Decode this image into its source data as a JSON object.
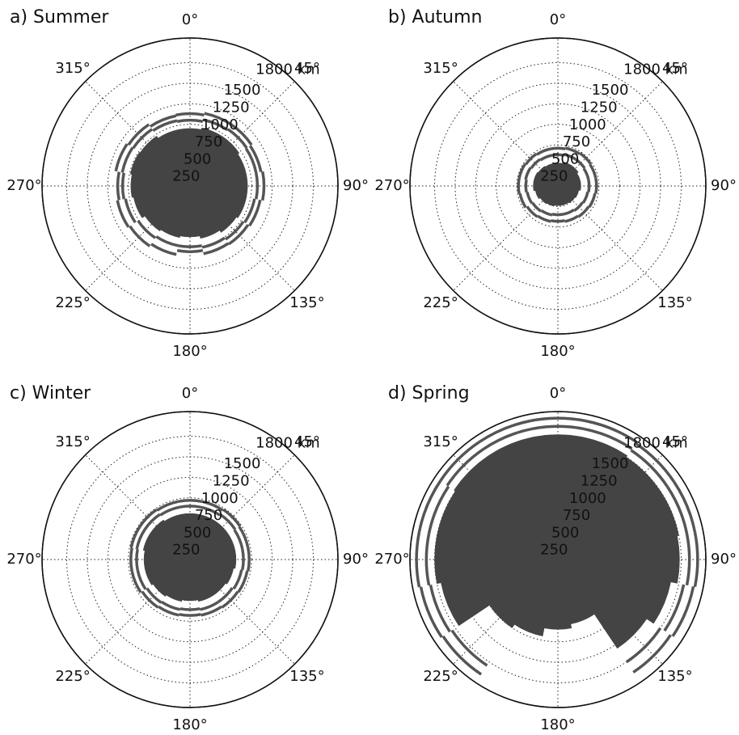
{
  "chart_data": [
    {
      "type": "polar_bar",
      "title": "a) Summer",
      "rlim": [
        0,
        1800
      ],
      "rticks": [
        250,
        500,
        750,
        1000,
        1250,
        1500,
        {
          "value": 1800,
          "label": "1800 km"
        }
      ],
      "thetaticks": [
        {
          "value": 0,
          "label": "0°"
        },
        {
          "value": 45,
          "label": "45°"
        },
        {
          "value": 90,
          "label": "90°"
        },
        {
          "value": 135,
          "label": "135°"
        },
        {
          "value": 180,
          "label": "180°"
        },
        {
          "value": 225,
          "label": "225°"
        },
        {
          "value": 270,
          "label": "270°"
        },
        {
          "value": 315,
          "label": "315°"
        }
      ],
      "theta": [
        0,
        22.5,
        45,
        67.5,
        90,
        112.5,
        135,
        157.5,
        180,
        202.5,
        225,
        247.5,
        270,
        292.5,
        315,
        337.5
      ],
      "grid": true,
      "series": [
        {
          "kind": "fill",
          "color": "#444444",
          "values": [
            700,
            720,
            720,
            700,
            700,
            700,
            680,
            650,
            620,
            640,
            660,
            700,
            720,
            740,
            730,
            700
          ]
        },
        {
          "kind": "outline",
          "color": "#555555",
          "values": [
            800,
            820,
            830,
            820,
            820,
            800,
            780,
            760,
            740,
            740,
            760,
            800,
            820,
            840,
            830,
            810
          ]
        },
        {
          "kind": "outline",
          "color": "#555555",
          "values": [
            880,
            900,
            900,
            880,
            900,
            870,
            850,
            840,
            800,
            850,
            880,
            900,
            880,
            920,
            900,
            870
          ]
        }
      ]
    },
    {
      "type": "polar_bar",
      "title": "b) Autumn",
      "rlim": [
        0,
        1800
      ],
      "rticks": [
        250,
        500,
        750,
        1000,
        1250,
        1500,
        {
          "value": 1800,
          "label": "1800 km"
        }
      ],
      "thetaticks": [
        {
          "value": 0,
          "label": "0°"
        },
        {
          "value": 45,
          "label": "45°"
        },
        {
          "value": 90,
          "label": "90°"
        },
        {
          "value": 135,
          "label": "135°"
        },
        {
          "value": 180,
          "label": "180°"
        },
        {
          "value": 225,
          "label": "225°"
        },
        {
          "value": 270,
          "label": "270°"
        },
        {
          "value": 315,
          "label": "315°"
        }
      ],
      "theta": [
        0,
        22.5,
        45,
        67.5,
        90,
        112.5,
        135,
        157.5,
        180,
        202.5,
        225,
        247.5,
        270,
        292.5,
        315,
        337.5
      ],
      "grid": true,
      "series": [
        {
          "kind": "fill",
          "color": "#444444",
          "values": [
            280,
            300,
            300,
            280,
            280,
            260,
            250,
            240,
            240,
            250,
            260,
            280,
            300,
            300,
            290,
            280
          ]
        },
        {
          "kind": "outline",
          "color": "#555555",
          "values": [
            380,
            390,
            390,
            380,
            380,
            370,
            360,
            350,
            350,
            360,
            370,
            380,
            390,
            400,
            390,
            380
          ]
        },
        {
          "kind": "outline",
          "color": "#555555",
          "values": [
            460,
            470,
            480,
            470,
            470,
            460,
            450,
            440,
            430,
            440,
            450,
            470,
            480,
            480,
            470,
            460
          ]
        }
      ]
    },
    {
      "type": "polar_bar",
      "title": "c) Winter",
      "rlim": [
        0,
        1800
      ],
      "rticks": [
        250,
        500,
        750,
        1000,
        1250,
        1500,
        {
          "value": 1800,
          "label": "1800 km"
        }
      ],
      "thetaticks": [
        {
          "value": 0,
          "label": "0°"
        },
        {
          "value": 45,
          "label": "45°"
        },
        {
          "value": 90,
          "label": "90°"
        },
        {
          "value": 135,
          "label": "135°"
        },
        {
          "value": 180,
          "label": "180°"
        },
        {
          "value": 225,
          "label": "225°"
        },
        {
          "value": 270,
          "label": "270°"
        },
        {
          "value": 315,
          "label": "315°"
        }
      ],
      "theta": [
        0,
        22.5,
        45,
        67.5,
        90,
        112.5,
        135,
        157.5,
        180,
        202.5,
        225,
        247.5,
        270,
        292.5,
        315,
        337.5
      ],
      "grid": true,
      "series": [
        {
          "kind": "fill",
          "color": "#444444",
          "values": [
            560,
            560,
            560,
            560,
            560,
            540,
            520,
            520,
            500,
            520,
            540,
            560,
            560,
            580,
            580,
            560
          ]
        },
        {
          "kind": "outline",
          "color": "#555555",
          "values": [
            650,
            650,
            660,
            650,
            650,
            640,
            620,
            620,
            610,
            620,
            630,
            650,
            650,
            660,
            660,
            650
          ]
        },
        {
          "kind": "outline",
          "color": "#555555",
          "values": [
            720,
            720,
            730,
            720,
            720,
            710,
            700,
            690,
            680,
            690,
            700,
            720,
            720,
            730,
            730,
            720
          ]
        }
      ]
    },
    {
      "type": "polar_bar",
      "title": "d) Spring",
      "rlim": [
        0,
        1800
      ],
      "rticks": [
        250,
        500,
        750,
        1000,
        1250,
        1500,
        {
          "value": 1800,
          "label": "1800 km"
        }
      ],
      "thetaticks": [
        {
          "value": 0,
          "label": "0°"
        },
        {
          "value": 45,
          "label": "45°"
        },
        {
          "value": 90,
          "label": "90°"
        },
        {
          "value": 135,
          "label": "135°"
        },
        {
          "value": 180,
          "label": "180°"
        },
        {
          "value": 225,
          "label": "225°"
        },
        {
          "value": 270,
          "label": "270°"
        },
        {
          "value": 315,
          "label": "315°"
        }
      ],
      "theta": [
        0,
        22.5,
        45,
        67.5,
        90,
        112.5,
        135,
        157.5,
        180,
        202.5,
        225,
        247.5,
        270,
        292.5,
        315,
        337.5
      ],
      "grid": true,
      "series": [
        {
          "kind": "fill",
          "color": "#444444",
          "values": [
            1520,
            1520,
            1500,
            1500,
            1480,
            1400,
            1300,
            800,
            850,
            950,
            1000,
            1450,
            1500,
            1500,
            1520,
            1520
          ]
        },
        {
          "kind": "outline",
          "color": "#555555",
          "values": [
            1620,
            1620,
            1600,
            1600,
            1600,
            1560,
            1500,
            null,
            null,
            null,
            1550,
            1580,
            1600,
            1600,
            1620,
            1620
          ]
        },
        {
          "kind": "outline",
          "color": "#555555",
          "values": [
            1720,
            1720,
            1700,
            1700,
            1700,
            1680,
            1650,
            null,
            null,
            null,
            1680,
            1700,
            1720,
            1720,
            1720,
            1720
          ]
        }
      ]
    }
  ]
}
